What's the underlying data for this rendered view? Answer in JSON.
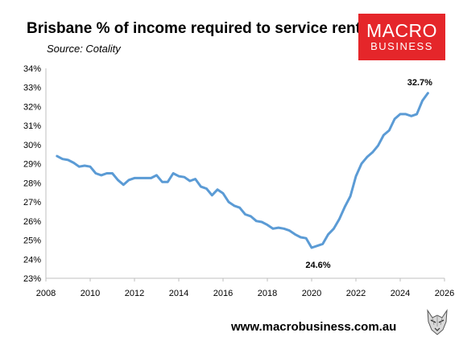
{
  "header": {
    "title": "Brisbane % of income required to service rent",
    "subtitle": "Source: Cotality"
  },
  "logo": {
    "line1": "MACRO",
    "line2": "BUSINESS",
    "color": "#e5262a"
  },
  "footer": {
    "url": "www.macrobusiness.com.au",
    "mascot_icon": "wolf-icon"
  },
  "chart_data": {
    "type": "line",
    "title": "Brisbane % of income required to service rent",
    "subtitle": "Source: Cotality",
    "xlabel": "",
    "ylabel": "",
    "xlim": [
      2008,
      2026
    ],
    "ylim": [
      23,
      34
    ],
    "x_ticks": [
      "2008",
      "2010",
      "2012",
      "2014",
      "2016",
      "2018",
      "2020",
      "2022",
      "2024",
      "2026"
    ],
    "y_ticks": [
      "23%",
      "24%",
      "25%",
      "26%",
      "27%",
      "28%",
      "29%",
      "30%",
      "31%",
      "32%",
      "33%",
      "34%"
    ],
    "grid": false,
    "legend": "none",
    "line_color": "#5b9bd5",
    "series": [
      {
        "x": [
          2008.5,
          2008.75,
          2009.0,
          2009.25,
          2009.5,
          2009.75,
          2010.0,
          2010.25,
          2010.5,
          2010.75,
          2011.0,
          2011.25,
          2011.5,
          2011.75,
          2012.0,
          2012.25,
          2012.5,
          2012.75,
          2013.0,
          2013.25,
          2013.5,
          2013.75,
          2014.0,
          2014.25,
          2014.5,
          2014.75,
          2015.0,
          2015.25,
          2015.5,
          2015.75,
          2016.0,
          2016.25,
          2016.5,
          2016.75,
          2017.0,
          2017.25,
          2017.5,
          2017.75,
          2018.0,
          2018.25,
          2018.5,
          2018.75,
          2019.0,
          2019.25,
          2019.5,
          2019.75,
          2020.0,
          2020.25,
          2020.5,
          2020.75,
          2021.0,
          2021.25,
          2021.5,
          2021.75,
          2022.0,
          2022.25,
          2022.5,
          2022.75,
          2023.0,
          2023.25,
          2023.5,
          2023.75,
          2024.0,
          2024.25,
          2024.5,
          2024.75,
          2025.0,
          2025.25
        ],
        "values": [
          29.4,
          29.25,
          29.2,
          29.05,
          28.85,
          28.9,
          28.85,
          28.5,
          28.4,
          28.5,
          28.5,
          28.15,
          27.9,
          28.15,
          28.25,
          28.25,
          28.25,
          28.25,
          28.4,
          28.05,
          28.05,
          28.5,
          28.35,
          28.3,
          28.1,
          28.2,
          27.8,
          27.7,
          27.35,
          27.65,
          27.45,
          27.0,
          26.8,
          26.7,
          26.35,
          26.25,
          26.0,
          25.95,
          25.8,
          25.6,
          25.65,
          25.6,
          25.5,
          25.3,
          25.15,
          25.1,
          24.6,
          24.7,
          24.8,
          25.3,
          25.6,
          26.1,
          26.75,
          27.3,
          28.35,
          29.0,
          29.35,
          29.6,
          29.95,
          30.5,
          30.75,
          31.35,
          31.6,
          31.6,
          31.5,
          31.6,
          32.3,
          32.7
        ]
      }
    ],
    "annotations": [
      {
        "x": 2020.0,
        "y": 24.6,
        "text": "24.6%"
      },
      {
        "x": 2025.25,
        "y": 32.7,
        "text": "32.7%"
      }
    ]
  }
}
